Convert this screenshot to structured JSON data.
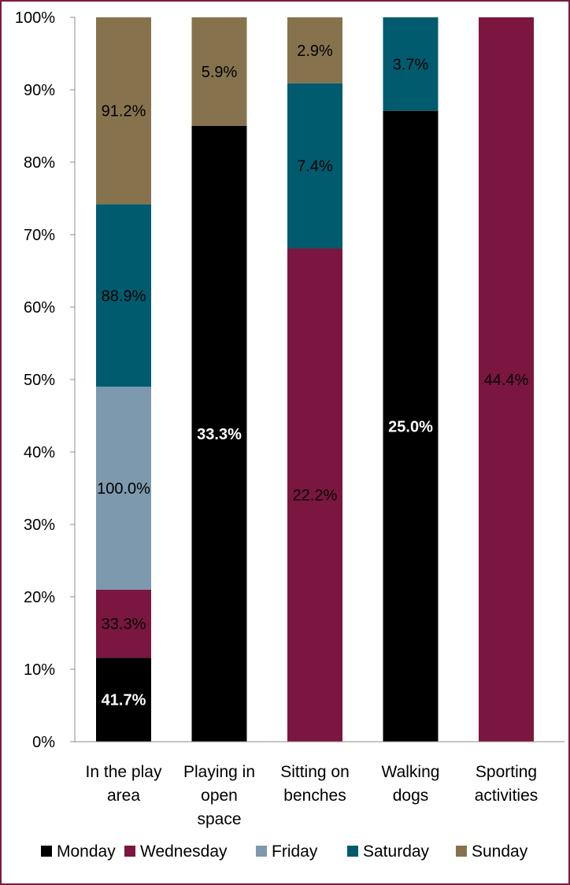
{
  "chart_data": {
    "type": "bar",
    "stacked": true,
    "categories": [
      [
        "In the play",
        "area"
      ],
      [
        "Playing in",
        "open",
        "space"
      ],
      [
        "Sitting on",
        "benches"
      ],
      [
        "Walking",
        "dogs"
      ],
      [
        "Sporting",
        "activities"
      ]
    ],
    "series": [
      {
        "name": "Monday",
        "color": "#000000",
        "label_color": "#ffffff",
        "label_bold": true,
        "values": [
          11.6,
          85.0,
          0,
          87.1,
          0
        ],
        "labels": [
          "41.7%",
          "33.3%",
          "",
          "25.0%",
          ""
        ]
      },
      {
        "name": "Wednesday",
        "color": "#7b1640",
        "label_color": "#000000",
        "label_bold": false,
        "values": [
          9.4,
          0,
          68.1,
          0,
          100
        ],
        "labels": [
          "33.3%",
          "",
          "22.2%",
          "",
          "44.4%"
        ]
      },
      {
        "name": "Friday",
        "color": "#7d99ad",
        "label_color": "#000000",
        "label_bold": false,
        "values": [
          28.0,
          0,
          0,
          0,
          0
        ],
        "labels": [
          "100.0%",
          "",
          "",
          "",
          ""
        ]
      },
      {
        "name": "Saturday",
        "color": "#005b6e",
        "label_color": "#000000",
        "label_bold": false,
        "values": [
          25.2,
          0,
          22.8,
          12.9,
          0
        ],
        "labels": [
          "88.9%",
          "",
          "7.4%",
          "3.7%",
          ""
        ]
      },
      {
        "name": "Sunday",
        "color": "#86734d",
        "label_color": "#000000",
        "label_bold": false,
        "values": [
          25.8,
          15.0,
          9.1,
          0,
          0
        ],
        "labels": [
          "91.2%",
          "5.9%",
          "2.9%",
          "",
          ""
        ]
      }
    ],
    "yticks": [
      "0%",
      "10%",
      "20%",
      "30%",
      "40%",
      "50%",
      "60%",
      "70%",
      "80%",
      "90%",
      "100%"
    ],
    "ylim": [
      0,
      100
    ],
    "grid": false,
    "legend_position": "bottom"
  }
}
